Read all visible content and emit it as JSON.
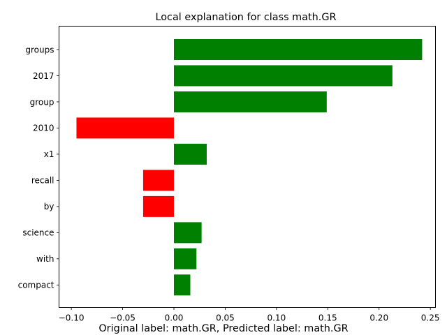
{
  "chart_data": {
    "type": "bar",
    "orientation": "horizontal",
    "title": "Local explanation for class math.GR",
    "xlabel": "",
    "ylabel": "",
    "caption": "Original label: math.GR, Predicted label: math.GR",
    "categories": [
      "groups",
      "2017",
      "group",
      "2010",
      "x1",
      "recall",
      "by",
      "science",
      "with",
      "compact"
    ],
    "values": [
      0.242,
      0.213,
      0.149,
      -0.095,
      0.032,
      -0.03,
      -0.03,
      0.027,
      0.022,
      0.016
    ],
    "xlim": [
      -0.112,
      0.255
    ],
    "xticks": [
      -0.1,
      -0.05,
      0.0,
      0.05,
      0.1,
      0.15,
      0.2,
      0.25
    ],
    "xtick_labels": [
      "−0.10",
      "−0.05",
      "0.00",
      "0.05",
      "0.10",
      "0.15",
      "0.20",
      "0.25"
    ],
    "grid": false,
    "legend": "none",
    "colors": {
      "positive": "#008000",
      "negative": "#ff0000"
    }
  }
}
